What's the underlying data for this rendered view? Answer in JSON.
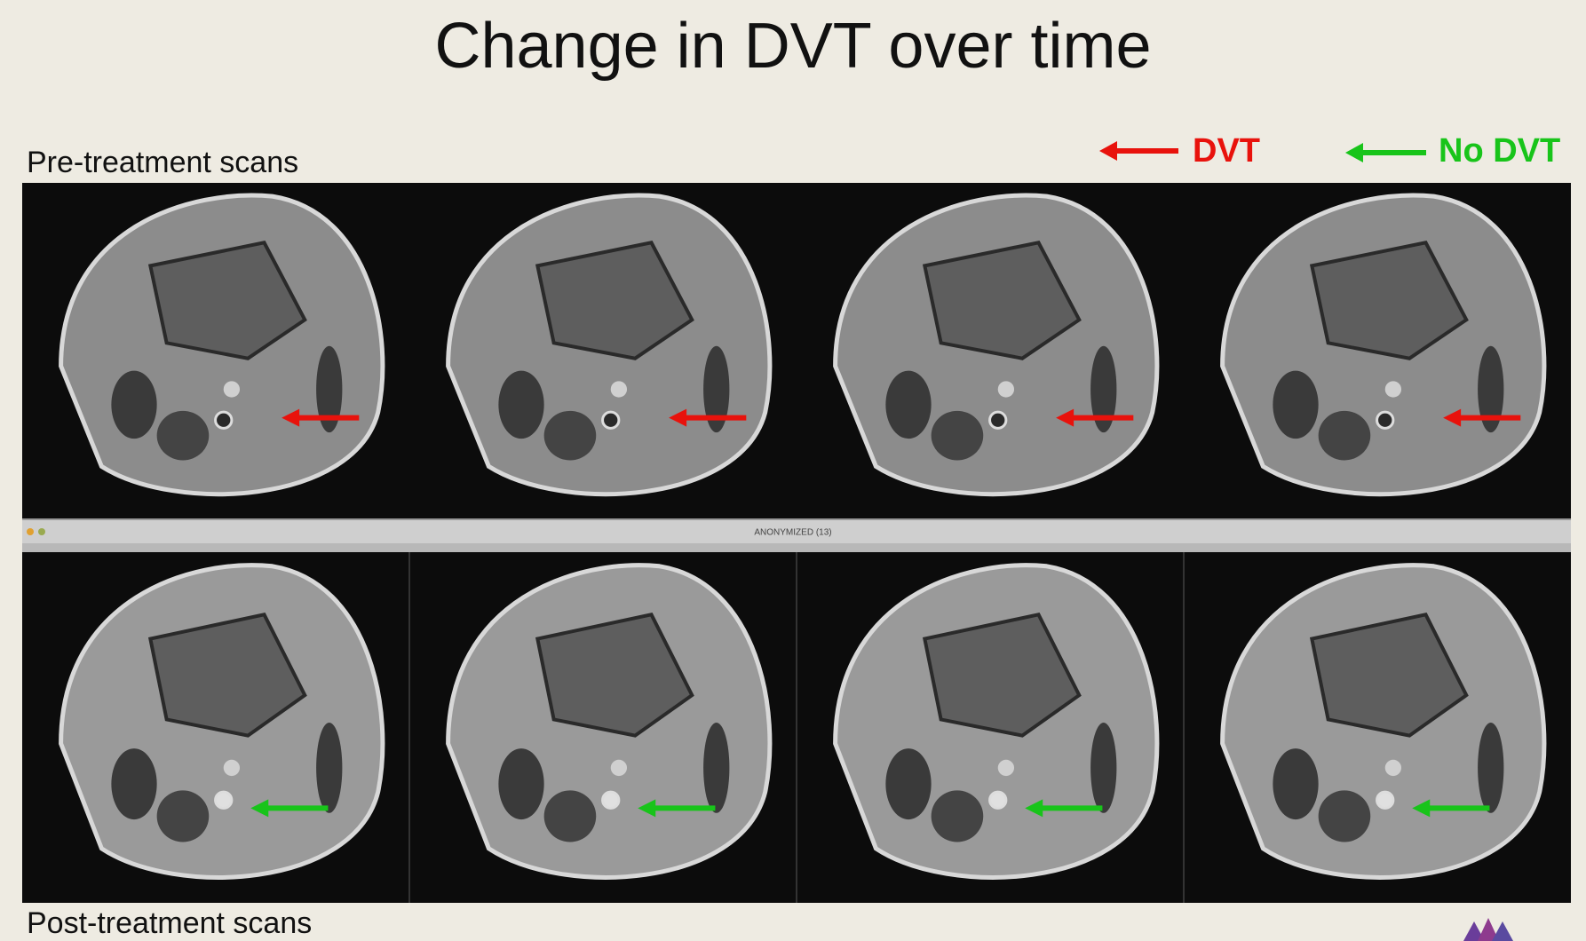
{
  "header": {
    "title": "Change in DVT over time"
  },
  "labels": {
    "pre": "Pre-treatment scans",
    "post": "Post-treatment scans"
  },
  "legend": [
    {
      "label": "DVT"
    },
    {
      "label": "No DVT"
    }
  ],
  "window_bar": {
    "title": "ANONYMIZED (13)"
  }
}
